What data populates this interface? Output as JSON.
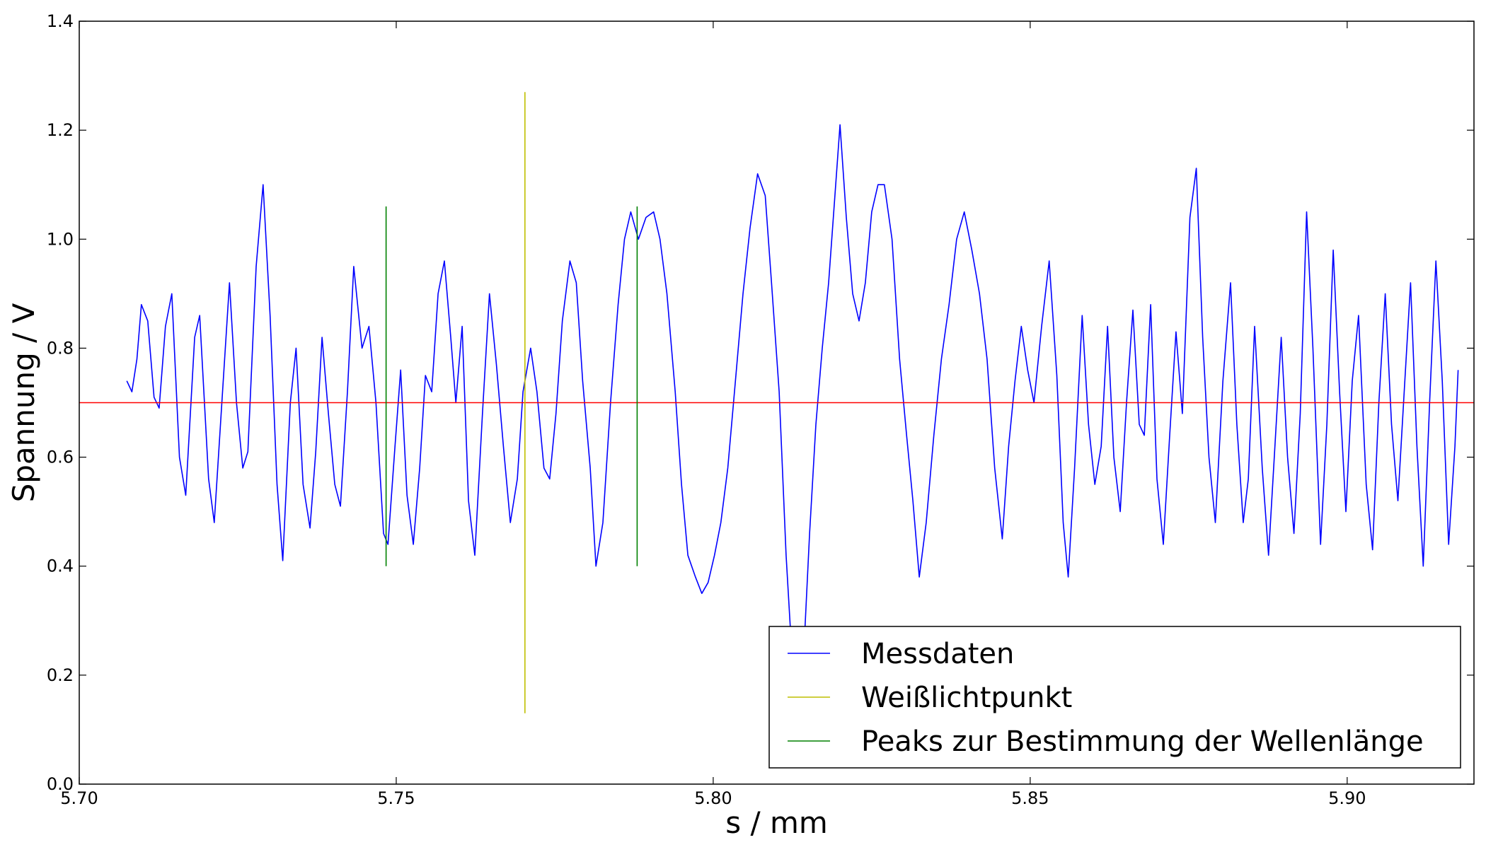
{
  "chart_data": {
    "type": "line",
    "xlabel": "s / mm",
    "ylabel": "Spannung / V",
    "xlim": [
      5.7,
      5.92
    ],
    "ylim": [
      0.0,
      1.4
    ],
    "x_ticks": [
      "5.70",
      "5.75",
      "5.80",
      "5.85",
      "5.90"
    ],
    "y_ticks": [
      "0.0",
      "0.2",
      "0.4",
      "0.6",
      "0.8",
      "1.0",
      "1.2",
      "1.4"
    ],
    "grid": false,
    "legend_position": "lower-right",
    "colors": {
      "messdaten": "#0000ff",
      "weisslicht": "#bfbf00",
      "peaks": "#008000",
      "reference": "#ff0000"
    },
    "series": [
      {
        "name": "Messdaten",
        "color": "#0000ff",
        "x_range": [
          5.7075,
          5.9175
        ],
        "points": [
          [
            5.7075,
            0.74
          ],
          [
            5.7083,
            0.72
          ],
          [
            5.7091,
            0.78
          ],
          [
            5.7098,
            0.88
          ],
          [
            5.7108,
            0.85
          ],
          [
            5.7118,
            0.71
          ],
          [
            5.7126,
            0.69
          ],
          [
            5.7136,
            0.84
          ],
          [
            5.7146,
            0.9
          ],
          [
            5.7158,
            0.6
          ],
          [
            5.7168,
            0.53
          ],
          [
            5.7182,
            0.82
          ],
          [
            5.719,
            0.86
          ],
          [
            5.7204,
            0.56
          ],
          [
            5.7213,
            0.48
          ],
          [
            5.7226,
            0.72
          ],
          [
            5.7237,
            0.92
          ],
          [
            5.7248,
            0.7
          ],
          [
            5.7258,
            0.58
          ],
          [
            5.7266,
            0.61
          ],
          [
            5.7279,
            0.95
          ],
          [
            5.729,
            1.1
          ],
          [
            5.7301,
            0.86
          ],
          [
            5.7312,
            0.55
          ],
          [
            5.7321,
            0.41
          ],
          [
            5.7333,
            0.7
          ],
          [
            5.7342,
            0.8
          ],
          [
            5.7353,
            0.55
          ],
          [
            5.7364,
            0.47
          ],
          [
            5.7373,
            0.61
          ],
          [
            5.7383,
            0.82
          ],
          [
            5.7393,
            0.68
          ],
          [
            5.7403,
            0.55
          ],
          [
            5.7412,
            0.51
          ],
          [
            5.7423,
            0.72
          ],
          [
            5.7433,
            0.95
          ],
          [
            5.7446,
            0.8
          ],
          [
            5.7457,
            0.84
          ],
          [
            5.7468,
            0.7
          ],
          [
            5.748,
            0.46
          ],
          [
            5.7487,
            0.44
          ],
          [
            5.7498,
            0.62
          ],
          [
            5.7507,
            0.76
          ],
          [
            5.7517,
            0.53
          ],
          [
            5.7527,
            0.44
          ],
          [
            5.7537,
            0.58
          ],
          [
            5.7546,
            0.75
          ],
          [
            5.7556,
            0.72
          ],
          [
            5.7566,
            0.9
          ],
          [
            5.7576,
            0.96
          ],
          [
            5.7586,
            0.82
          ],
          [
            5.7594,
            0.7
          ],
          [
            5.7604,
            0.84
          ],
          [
            5.7614,
            0.52
          ],
          [
            5.7624,
            0.42
          ],
          [
            5.7636,
            0.68
          ],
          [
            5.7647,
            0.9
          ],
          [
            5.7658,
            0.77
          ],
          [
            5.7669,
            0.62
          ],
          [
            5.768,
            0.48
          ],
          [
            5.7691,
            0.56
          ],
          [
            5.77,
            0.72
          ],
          [
            5.7712,
            0.8
          ],
          [
            5.7722,
            0.72
          ],
          [
            5.7733,
            0.58
          ],
          [
            5.7742,
            0.56
          ],
          [
            5.7752,
            0.68
          ],
          [
            5.7762,
            0.85
          ],
          [
            5.7774,
            0.96
          ],
          [
            5.7784,
            0.92
          ],
          [
            5.7794,
            0.74
          ],
          [
            5.7806,
            0.58
          ],
          [
            5.7815,
            0.4
          ],
          [
            5.7826,
            0.48
          ],
          [
            5.7838,
            0.7
          ],
          [
            5.785,
            0.88
          ],
          [
            5.786,
            1.0
          ],
          [
            5.787,
            1.05
          ],
          [
            5.7882,
            1.0
          ],
          [
            5.7894,
            1.04
          ],
          [
            5.7906,
            1.05
          ],
          [
            5.7916,
            1.0
          ],
          [
            5.7927,
            0.9
          ],
          [
            5.794,
            0.72
          ],
          [
            5.795,
            0.55
          ],
          [
            5.796,
            0.42
          ],
          [
            5.7972,
            0.38
          ],
          [
            5.7982,
            0.35
          ],
          [
            5.7992,
            0.37
          ],
          [
            5.8002,
            0.42
          ],
          [
            5.8012,
            0.48
          ],
          [
            5.8023,
            0.58
          ],
          [
            5.8035,
            0.74
          ],
          [
            5.8047,
            0.9
          ],
          [
            5.8058,
            1.02
          ],
          [
            5.807,
            1.12
          ],
          [
            5.8082,
            1.08
          ],
          [
            5.8092,
            0.92
          ],
          [
            5.8104,
            0.72
          ],
          [
            5.8115,
            0.42
          ],
          [
            5.8125,
            0.22
          ],
          [
            5.8133,
            0.14
          ],
          [
            5.8142,
            0.22
          ],
          [
            5.8152,
            0.46
          ],
          [
            5.8162,
            0.66
          ],
          [
            5.8172,
            0.8
          ],
          [
            5.8182,
            0.92
          ],
          [
            5.8192,
            1.08
          ],
          [
            5.82,
            1.21
          ],
          [
            5.821,
            1.04
          ],
          [
            5.822,
            0.9
          ],
          [
            5.823,
            0.85
          ],
          [
            5.824,
            0.92
          ],
          [
            5.825,
            1.05
          ],
          [
            5.826,
            1.1
          ],
          [
            5.827,
            1.1
          ],
          [
            5.8282,
            1.0
          ],
          [
            5.8294,
            0.78
          ],
          [
            5.8305,
            0.64
          ],
          [
            5.8315,
            0.52
          ],
          [
            5.8325,
            0.38
          ],
          [
            5.8336,
            0.48
          ],
          [
            5.8348,
            0.64
          ],
          [
            5.836,
            0.78
          ],
          [
            5.8372,
            0.88
          ],
          [
            5.8384,
            1.0
          ],
          [
            5.8396,
            1.05
          ],
          [
            5.8408,
            0.98
          ],
          [
            5.842,
            0.9
          ],
          [
            5.8432,
            0.78
          ],
          [
            5.8444,
            0.58
          ],
          [
            5.8456,
            0.45
          ],
          [
            5.8466,
            0.62
          ],
          [
            5.8476,
            0.74
          ],
          [
            5.8486,
            0.84
          ],
          [
            5.8496,
            0.76
          ],
          [
            5.8506,
            0.7
          ],
          [
            5.8518,
            0.84
          ],
          [
            5.853,
            0.96
          ],
          [
            5.8542,
            0.75
          ],
          [
            5.8552,
            0.48
          ],
          [
            5.856,
            0.38
          ],
          [
            5.857,
            0.58
          ],
          [
            5.8582,
            0.86
          ],
          [
            5.8592,
            0.66
          ],
          [
            5.8602,
            0.55
          ],
          [
            5.8612,
            0.62
          ],
          [
            5.8622,
            0.84
          ],
          [
            5.8632,
            0.6
          ],
          [
            5.8642,
            0.5
          ],
          [
            5.8652,
            0.7
          ],
          [
            5.8662,
            0.87
          ],
          [
            5.8672,
            0.66
          ],
          [
            5.868,
            0.64
          ],
          [
            5.869,
            0.88
          ],
          [
            5.87,
            0.56
          ],
          [
            5.871,
            0.44
          ],
          [
            5.872,
            0.64
          ],
          [
            5.873,
            0.83
          ],
          [
            5.874,
            0.68
          ],
          [
            5.8752,
            1.04
          ],
          [
            5.8762,
            1.13
          ],
          [
            5.8772,
            0.82
          ],
          [
            5.8782,
            0.6
          ],
          [
            5.8792,
            0.48
          ],
          [
            5.8804,
            0.74
          ],
          [
            5.8816,
            0.92
          ],
          [
            5.8826,
            0.66
          ],
          [
            5.8836,
            0.48
          ],
          [
            5.8844,
            0.56
          ],
          [
            5.8854,
            0.84
          ],
          [
            5.8866,
            0.58
          ],
          [
            5.8876,
            0.42
          ],
          [
            5.8886,
            0.62
          ],
          [
            5.8896,
            0.82
          ],
          [
            5.8906,
            0.6
          ],
          [
            5.8916,
            0.46
          ],
          [
            5.8926,
            0.68
          ],
          [
            5.8936,
            1.05
          ],
          [
            5.8946,
            0.8
          ],
          [
            5.8958,
            0.44
          ],
          [
            5.8968,
            0.66
          ],
          [
            5.8978,
            0.98
          ],
          [
            5.8988,
            0.72
          ],
          [
            5.8998,
            0.5
          ],
          [
            5.9008,
            0.74
          ],
          [
            5.9018,
            0.86
          ],
          [
            5.903,
            0.55
          ],
          [
            5.904,
            0.43
          ],
          [
            5.905,
            0.7
          ],
          [
            5.906,
            0.9
          ],
          [
            5.907,
            0.66
          ],
          [
            5.908,
            0.52
          ],
          [
            5.909,
            0.72
          ],
          [
            5.91,
            0.92
          ],
          [
            5.911,
            0.62
          ],
          [
            5.912,
            0.4
          ],
          [
            5.913,
            0.7
          ],
          [
            5.914,
            0.96
          ],
          [
            5.915,
            0.74
          ],
          [
            5.916,
            0.44
          ],
          [
            5.917,
            0.62
          ],
          [
            5.9175,
            0.76
          ]
        ]
      },
      {
        "name": "Weißlichtpunkt",
        "color": "#bfbf00",
        "x": [
          5.7703,
          5.7703
        ],
        "y": [
          0.13,
          1.27
        ]
      },
      {
        "name": "Peaks zur Bestimmung der Wellenlänge",
        "color": "#008000",
        "lines": [
          {
            "x": [
              5.7484,
              5.7484
            ],
            "y": [
              0.4,
              1.06
            ]
          },
          {
            "x": [
              5.788,
              5.788
            ],
            "y": [
              0.4,
              1.06
            ]
          }
        ]
      }
    ],
    "reference_line": {
      "y": 0.7,
      "color": "#ff0000"
    },
    "legend": [
      {
        "label": "Messdaten",
        "color": "#0000ff"
      },
      {
        "label": "Weißlichtpunkt",
        "color": "#bfbf00"
      },
      {
        "label": "Peaks zur Bestimmung der Wellenlänge",
        "color": "#008000"
      }
    ]
  }
}
